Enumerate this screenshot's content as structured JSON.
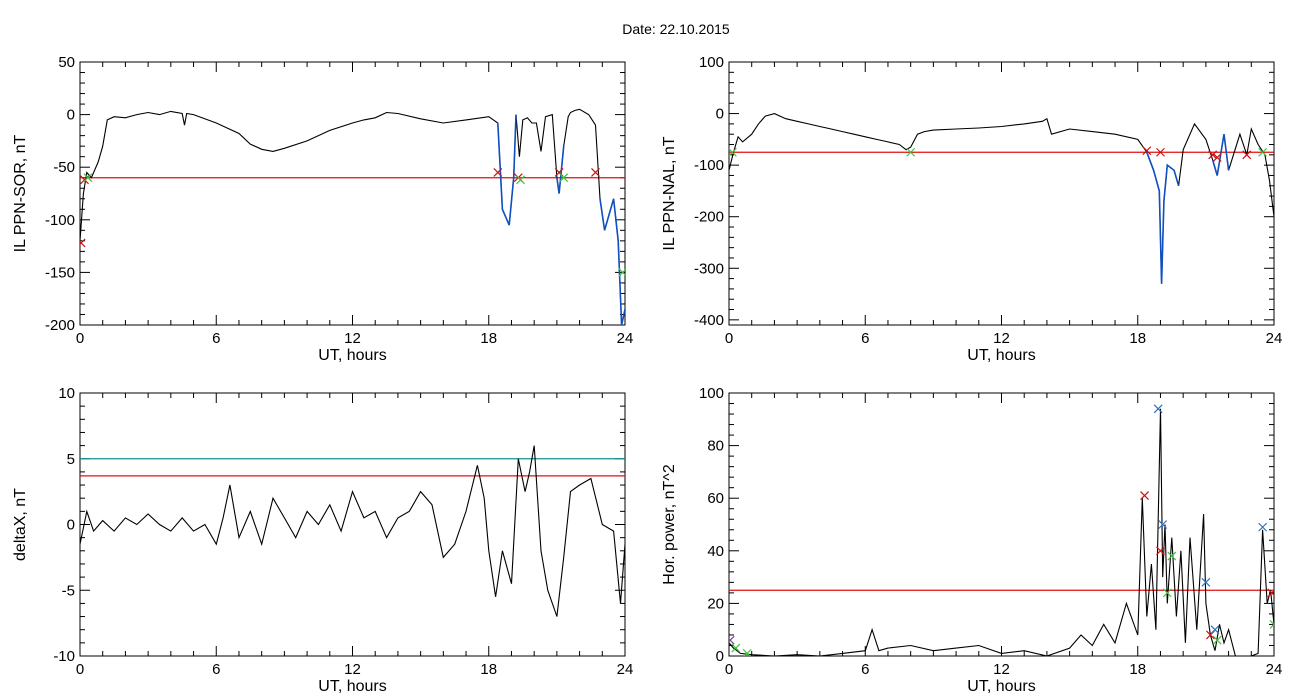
{
  "figure": {
    "title": "Date:  22.10.2015"
  },
  "colors": {
    "signal": "#000000",
    "threshold": "#e01010",
    "threshold2": "#109090",
    "segment": "#1050c0",
    "marker_red": "#d01010",
    "marker_green": "#40c040",
    "marker_blue": "#3070c0",
    "marker_purple": "#8040a0"
  },
  "chart_data": [
    {
      "id": "sor",
      "type": "line",
      "xlabel": "UT, hours",
      "ylabel": "IL PPN-SOR, nT",
      "xlim": [
        0,
        24
      ],
      "ylim": [
        -200,
        50
      ],
      "xticks": [
        0,
        6,
        12,
        18,
        24
      ],
      "yticks": [
        -200,
        -150,
        -100,
        -50,
        0,
        50
      ],
      "threshold": -60,
      "series": [
        {
          "x": [
            0,
            0.15,
            0.3,
            0.5,
            0.8,
            1.0,
            1.2,
            1.5,
            2.0,
            2.5,
            3.0,
            3.5,
            4.0,
            4.5,
            4.6,
            4.7,
            5.0,
            6.0,
            7.0,
            7.5,
            8.0,
            8.5,
            9.0,
            10.0,
            11.0,
            12.0,
            12.5,
            13.0,
            13.5,
            14.0,
            15.0,
            16.0,
            17.0,
            18.0,
            18.4,
            18.6,
            18.9,
            19.1,
            19.2,
            19.35,
            19.5,
            19.7,
            19.9,
            20.1,
            20.3,
            20.5,
            20.8,
            21.0,
            21.1,
            21.3,
            21.5,
            21.6,
            21.8,
            22.0,
            22.4,
            22.7,
            22.9,
            23.1,
            23.3,
            23.5,
            23.7,
            23.85,
            24.0
          ],
          "y": [
            -120,
            -75,
            -55,
            -60,
            -45,
            -30,
            -5,
            -2,
            -3,
            0,
            2,
            0,
            3,
            1,
            -10,
            1,
            0,
            -8,
            -18,
            -28,
            -33,
            -35,
            -32,
            -25,
            -15,
            -8,
            -5,
            -3,
            2,
            1,
            -4,
            -8,
            -5,
            -2,
            -8,
            -90,
            -105,
            -60,
            0,
            -40,
            -5,
            -3,
            -8,
            -8,
            -35,
            -2,
            0,
            -60,
            -75,
            -30,
            -2,
            2,
            4,
            5,
            0,
            -10,
            -80,
            -110,
            -95,
            -80,
            -120,
            -200,
            -185
          ]
        }
      ],
      "segments": [
        [
          18.4,
          19.2
        ],
        [
          21.0,
          21.3
        ],
        [
          22.9,
          24.0
        ]
      ],
      "markers": [
        {
          "x": 0.2,
          "y": -62,
          "color": "marker_red"
        },
        {
          "x": 0.35,
          "y": -60,
          "color": "marker_green"
        },
        {
          "x": 18.4,
          "y": -55,
          "color": "marker_red"
        },
        {
          "x": 19.3,
          "y": -60,
          "color": "marker_red"
        },
        {
          "x": 19.4,
          "y": -62,
          "color": "marker_green"
        },
        {
          "x": 21.1,
          "y": -55,
          "color": "marker_red"
        },
        {
          "x": 21.3,
          "y": -60,
          "color": "marker_green"
        },
        {
          "x": 22.7,
          "y": -55,
          "color": "marker_red"
        },
        {
          "x": 0.05,
          "y": -122,
          "color": "marker_red"
        },
        {
          "x": 23.9,
          "y": -150,
          "color": "marker_green"
        }
      ]
    },
    {
      "id": "nal",
      "type": "line",
      "xlabel": "UT, hours",
      "ylabel": "IL PPN-NAL, nT",
      "xlim": [
        0,
        24
      ],
      "ylim": [
        -410,
        100
      ],
      "xticks": [
        0,
        6,
        12,
        18,
        24
      ],
      "yticks": [
        -400,
        -300,
        -200,
        -100,
        0,
        100
      ],
      "threshold": -75,
      "series": [
        {
          "x": [
            0,
            0.2,
            0.4,
            0.6,
            1.0,
            1.3,
            1.6,
            2.0,
            2.5,
            3.0,
            3.5,
            4.0,
            4.5,
            5.0,
            5.5,
            6.0,
            6.5,
            7.0,
            7.5,
            7.8,
            8.0,
            8.3,
            8.6,
            9.0,
            10.0,
            11.0,
            12.0,
            13.0,
            13.8,
            14.0,
            14.2,
            15.0,
            16.0,
            17.0,
            18.0,
            18.4,
            18.7,
            18.95,
            19.05,
            19.15,
            19.3,
            19.6,
            19.8,
            20.0,
            20.5,
            21.0,
            21.3,
            21.5,
            21.8,
            22.0,
            22.5,
            22.8,
            23.0,
            23.3,
            23.6,
            23.8,
            24.0
          ],
          "y": [
            -110,
            -75,
            -45,
            -55,
            -40,
            -20,
            -5,
            0,
            -10,
            -15,
            -20,
            -25,
            -30,
            -35,
            -40,
            -45,
            -50,
            -55,
            -60,
            -70,
            -65,
            -40,
            -35,
            -32,
            -30,
            -28,
            -25,
            -20,
            -15,
            -10,
            -40,
            -30,
            -35,
            -40,
            -50,
            -75,
            -110,
            -150,
            -330,
            -170,
            -100,
            -110,
            -140,
            -70,
            -20,
            -50,
            -90,
            -120,
            -40,
            -110,
            -40,
            -80,
            -30,
            -60,
            -80,
            -130,
            -200
          ]
        }
      ],
      "segments": [
        [
          18.4,
          19.8
        ],
        [
          21.1,
          22.4
        ]
      ],
      "markers": [
        {
          "x": 0.15,
          "y": -75,
          "color": "marker_green"
        },
        {
          "x": 8.0,
          "y": -75,
          "color": "marker_green"
        },
        {
          "x": 18.4,
          "y": -72,
          "color": "marker_red"
        },
        {
          "x": 19.0,
          "y": -75,
          "color": "marker_red"
        },
        {
          "x": 21.3,
          "y": -80,
          "color": "marker_red"
        },
        {
          "x": 21.5,
          "y": -85,
          "color": "marker_red"
        },
        {
          "x": 22.8,
          "y": -80,
          "color": "marker_red"
        },
        {
          "x": 23.5,
          "y": -75,
          "color": "marker_green"
        }
      ]
    },
    {
      "id": "deltax",
      "type": "line",
      "xlabel": "UT, hours",
      "ylabel": "deltaX, nT",
      "xlim": [
        0,
        24
      ],
      "ylim": [
        -10,
        10
      ],
      "xticks": [
        0,
        6,
        12,
        18,
        24
      ],
      "yticks": [
        -10,
        -5,
        0,
        5,
        10
      ],
      "threshold": 3.7,
      "threshold2": 5.0,
      "series": [
        {
          "x": [
            0,
            0.3,
            0.6,
            1.0,
            1.5,
            2.0,
            2.5,
            3.0,
            3.5,
            4.0,
            4.5,
            5.0,
            5.5,
            6.0,
            6.3,
            6.6,
            7.0,
            7.5,
            8.0,
            8.5,
            9.0,
            9.5,
            10.0,
            10.5,
            11.0,
            11.5,
            12.0,
            12.5,
            13.0,
            13.5,
            14.0,
            14.5,
            15.0,
            15.5,
            16.0,
            16.5,
            17.0,
            17.5,
            17.8,
            18.0,
            18.3,
            18.6,
            19.0,
            19.3,
            19.6,
            19.8,
            20.0,
            20.3,
            20.6,
            21.0,
            21.3,
            21.6,
            22.0,
            22.5,
            23.0,
            23.5,
            23.8,
            24.0
          ],
          "y": [
            -1.5,
            1.0,
            -0.5,
            0.3,
            -0.5,
            0.5,
            0.0,
            0.8,
            0.0,
            -0.5,
            0.5,
            -0.5,
            0.0,
            -1.5,
            0.5,
            3.0,
            -1.0,
            1.0,
            -1.5,
            2.0,
            0.5,
            -1.0,
            1.0,
            0.0,
            1.5,
            -0.5,
            2.5,
            0.5,
            1.0,
            -1.0,
            0.5,
            1.0,
            2.5,
            1.5,
            -2.5,
            -1.5,
            1.0,
            4.5,
            2.0,
            -2.0,
            -5.5,
            -2.0,
            -4.5,
            5.0,
            2.5,
            4.0,
            6.0,
            -2.0,
            -5.0,
            -7.0,
            -2.5,
            2.5,
            3.0,
            3.5,
            0.0,
            -0.5,
            -6.0,
            -1.5
          ]
        }
      ]
    },
    {
      "id": "power",
      "type": "line",
      "xlabel": "UT, hours",
      "ylabel": "Hor. power, nT^2",
      "xlim": [
        0,
        24
      ],
      "ylim": [
        0,
        100
      ],
      "xticks": [
        0,
        6,
        12,
        18,
        24
      ],
      "yticks": [
        0,
        20,
        40,
        60,
        80,
        100
      ],
      "threshold": 25,
      "series": [
        {
          "x": [
            0,
            0.2,
            0.5,
            1.0,
            2.0,
            3.0,
            4.0,
            5.0,
            6.0,
            6.3,
            6.6,
            7.0,
            8.0,
            9.0,
            10.0,
            11.0,
            12.0,
            13.0,
            14.0,
            15.0,
            15.5,
            16.0,
            16.5,
            17.0,
            17.5,
            18.0,
            18.2,
            18.4,
            18.6,
            18.8,
            19.0,
            19.1,
            19.2,
            19.3,
            19.5,
            19.7,
            19.9,
            20.1,
            20.3,
            20.6,
            20.9,
            21.0,
            21.2,
            21.4,
            21.6,
            21.8,
            22.0,
            22.3,
            22.6,
            23.0,
            23.3,
            23.5,
            23.7,
            23.85,
            24.0
          ],
          "y": [
            5,
            3,
            1,
            0.5,
            0,
            0.5,
            0,
            1,
            2,
            10,
            2,
            3,
            4,
            2,
            3,
            4,
            1,
            2,
            0,
            3,
            8,
            4,
            12,
            5,
            20,
            8,
            60,
            15,
            35,
            10,
            94,
            30,
            50,
            20,
            45,
            15,
            40,
            5,
            45,
            10,
            54,
            20,
            8,
            2,
            12,
            5,
            10,
            0,
            0,
            0,
            1,
            48,
            20,
            25,
            12
          ]
        }
      ],
      "markers": [
        {
          "x": 0.05,
          "y": 6,
          "color": "marker_purple"
        },
        {
          "x": 0.3,
          "y": 3,
          "color": "marker_green"
        },
        {
          "x": 0.8,
          "y": 1,
          "color": "marker_green"
        },
        {
          "x": 18.3,
          "y": 61,
          "color": "marker_red"
        },
        {
          "x": 18.9,
          "y": 94,
          "color": "marker_blue"
        },
        {
          "x": 19.1,
          "y": 50,
          "color": "marker_blue"
        },
        {
          "x": 19.0,
          "y": 40,
          "color": "marker_red"
        },
        {
          "x": 19.3,
          "y": 24,
          "color": "marker_green"
        },
        {
          "x": 19.5,
          "y": 38,
          "color": "marker_green"
        },
        {
          "x": 21.0,
          "y": 28,
          "color": "marker_blue"
        },
        {
          "x": 21.2,
          "y": 8,
          "color": "marker_red"
        },
        {
          "x": 21.4,
          "y": 10,
          "color": "marker_blue"
        },
        {
          "x": 21.5,
          "y": 6,
          "color": "marker_green"
        },
        {
          "x": 23.5,
          "y": 49,
          "color": "marker_blue"
        },
        {
          "x": 23.9,
          "y": 24,
          "color": "marker_red"
        },
        {
          "x": 24.0,
          "y": 12,
          "color": "marker_green"
        }
      ]
    }
  ]
}
